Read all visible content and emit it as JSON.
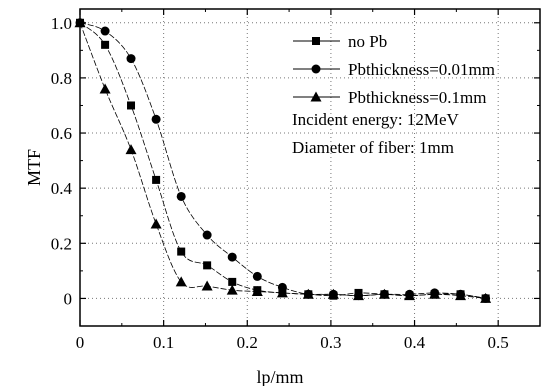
{
  "chart_data": {
    "type": "line",
    "xlabel": "lp/mm",
    "ylabel": "MTF",
    "xlim": [
      0,
      0.55
    ],
    "ylim": [
      -0.1,
      1.05
    ],
    "xticks": [
      0,
      0.1,
      0.2,
      0.3,
      0.4,
      0.5
    ],
    "xtick_labels": [
      "0",
      "0.1",
      "0.2",
      "0.3",
      "0.4",
      "0.5"
    ],
    "yticks": [
      0,
      0.2,
      0.4,
      0.6,
      0.8,
      1.0
    ],
    "ytick_labels": [
      "0",
      "0.2",
      "0.4",
      "0.6",
      "0.8",
      "1.0"
    ],
    "grid": true,
    "grid_style": "dotted",
    "legend_position": "top-right",
    "series": [
      {
        "name": "no Pb",
        "marker": "square",
        "x": [
          0,
          0.03,
          0.061,
          0.091,
          0.121,
          0.152,
          0.182,
          0.212,
          0.242,
          0.273,
          0.303,
          0.333,
          0.364,
          0.394,
          0.424,
          0.455,
          0.485
        ],
        "y": [
          1.0,
          0.92,
          0.7,
          0.43,
          0.17,
          0.12,
          0.06,
          0.03,
          0.02,
          0.015,
          0.01,
          0.02,
          0.015,
          0.01,
          0.015,
          0.015,
          0.0
        ]
      },
      {
        "name": "Pbthickness=0.01mm",
        "marker": "circle",
        "x": [
          0,
          0.03,
          0.061,
          0.091,
          0.121,
          0.152,
          0.182,
          0.212,
          0.242,
          0.273,
          0.303,
          0.333,
          0.364,
          0.394,
          0.424,
          0.455,
          0.485
        ],
        "y": [
          1.0,
          0.97,
          0.87,
          0.65,
          0.37,
          0.23,
          0.15,
          0.08,
          0.04,
          0.015,
          0.015,
          0.01,
          0.015,
          0.015,
          0.02,
          0.015,
          0.0
        ]
      },
      {
        "name": "Pbthickness=0.1mm",
        "marker": "triangle",
        "x": [
          0,
          0.03,
          0.061,
          0.091,
          0.121,
          0.152,
          0.182,
          0.212,
          0.242,
          0.273,
          0.303,
          0.333,
          0.364,
          0.394,
          0.424,
          0.455,
          0.485
        ],
        "y": [
          1.0,
          0.76,
          0.54,
          0.27,
          0.06,
          0.045,
          0.03,
          0.025,
          0.02,
          0.015,
          0.015,
          0.01,
          0.015,
          0.01,
          0.015,
          0.01,
          0.0
        ]
      }
    ],
    "annotations": [
      "Incident energy: 12MeV",
      "Diameter of fiber: 1mm"
    ]
  }
}
